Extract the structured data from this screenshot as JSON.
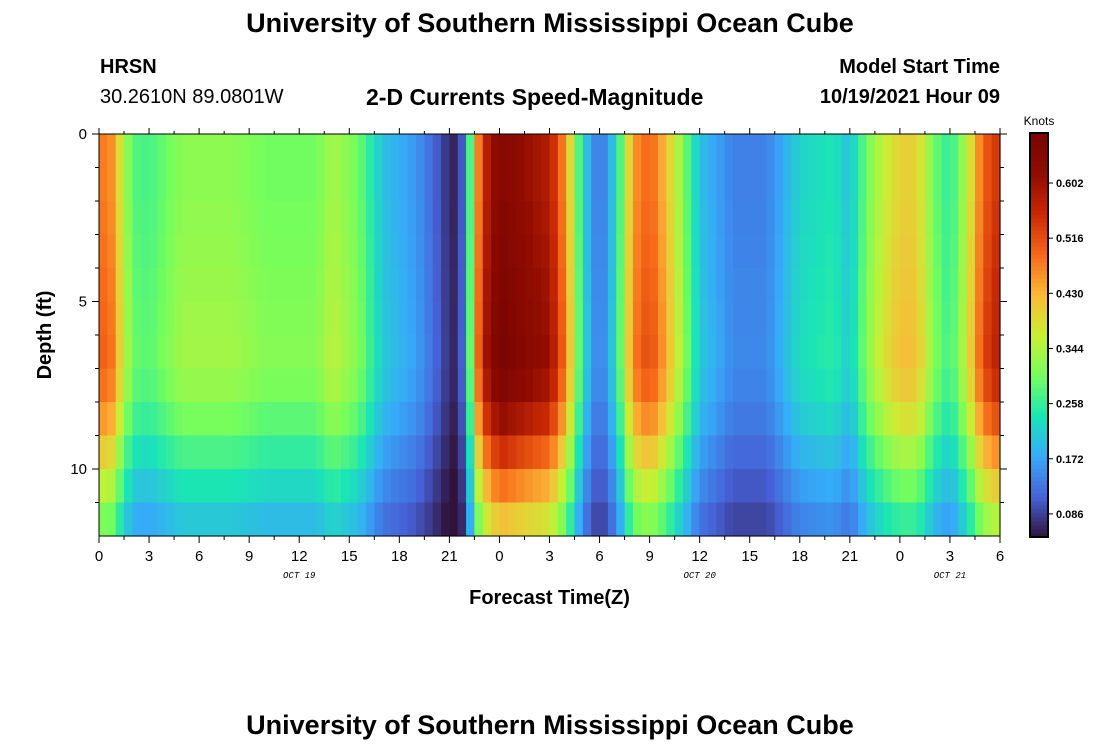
{
  "header": {
    "title": "University of Southern Mississippi Ocean Cube",
    "station": "HRSN",
    "coords": "30.2610N  89.0801W",
    "subtitle": "2-D Currents Speed-Magnitude",
    "model_label": "Model Start Time",
    "model_time": "10/19/2021 Hour 09"
  },
  "footer": {
    "title": "University of Southern Mississippi Ocean Cube"
  },
  "chart_data": {
    "type": "heatmap",
    "title": "2-D Currents Speed-Magnitude",
    "xlabel": "Forecast Time(Z)",
    "ylabel": "Depth (ft)",
    "colorbar_label": "Knots",
    "colorbar_ticks": [
      0.086,
      0.172,
      0.258,
      0.344,
      0.43,
      0.516,
      0.602
    ],
    "colorbar_tick_labels": [
      "0.086",
      "0.172",
      "0.258",
      "0.344",
      "0.430",
      "0.516",
      "0.602"
    ],
    "color_range": [
      0.05,
      0.68
    ],
    "x_range_hours": [
      0,
      54
    ],
    "x_ticks": [
      {
        "h": 0,
        "label": "0"
      },
      {
        "h": 3,
        "label": "3"
      },
      {
        "h": 6,
        "label": "6"
      },
      {
        "h": 9,
        "label": "9"
      },
      {
        "h": 12,
        "label": "12"
      },
      {
        "h": 15,
        "label": "15"
      },
      {
        "h": 18,
        "label": "18"
      },
      {
        "h": 21,
        "label": "21"
      },
      {
        "h": 24,
        "label": "0"
      },
      {
        "h": 27,
        "label": "3"
      },
      {
        "h": 30,
        "label": "6"
      },
      {
        "h": 33,
        "label": "9"
      },
      {
        "h": 36,
        "label": "12"
      },
      {
        "h": 39,
        "label": "15"
      },
      {
        "h": 42,
        "label": "18"
      },
      {
        "h": 45,
        "label": "21"
      },
      {
        "h": 48,
        "label": "0"
      },
      {
        "h": 51,
        "label": "3"
      },
      {
        "h": 54,
        "label": "6"
      }
    ],
    "date_labels": [
      {
        "h": 12,
        "label": "OCT 19"
      },
      {
        "h": 36,
        "label": "OCT 20"
      },
      {
        "h": 51,
        "label": "OCT 21"
      }
    ],
    "y_range_ft": [
      0,
      12
    ],
    "y_ticks": [
      0,
      5,
      10
    ],
    "depth_levels_ft": [
      0.5,
      1.5,
      2.5,
      3.5,
      4.5,
      5.5,
      6.5,
      7.5,
      8.5,
      9.5,
      10.5,
      11.5
    ],
    "time_knots_hours": [
      0,
      0.5,
      1,
      2,
      3,
      5,
      8,
      10,
      13,
      14,
      15.5,
      17,
      19,
      20,
      21,
      21.5,
      22,
      22.5,
      23,
      24,
      26,
      27,
      28,
      29,
      30,
      31,
      32,
      33,
      34,
      36,
      38,
      39,
      40,
      42,
      44,
      45,
      46,
      47,
      48,
      49,
      50,
      51,
      52,
      53,
      54
    ],
    "surface_speed_knots": [
      0.45,
      0.5,
      0.42,
      0.28,
      0.27,
      0.32,
      0.32,
      0.3,
      0.3,
      0.34,
      0.3,
      0.2,
      0.16,
      0.12,
      0.07,
      0.06,
      0.15,
      0.4,
      0.55,
      0.65,
      0.6,
      0.58,
      0.45,
      0.22,
      0.12,
      0.22,
      0.45,
      0.5,
      0.42,
      0.2,
      0.14,
      0.14,
      0.14,
      0.22,
      0.24,
      0.2,
      0.3,
      0.36,
      0.4,
      0.4,
      0.3,
      0.25,
      0.35,
      0.5,
      0.55
    ],
    "depth_factors": [
      1.0,
      1.0,
      1.01,
      1.02,
      1.03,
      1.04,
      1.05,
      1.02,
      0.95,
      0.85,
      0.75,
      0.65
    ]
  }
}
